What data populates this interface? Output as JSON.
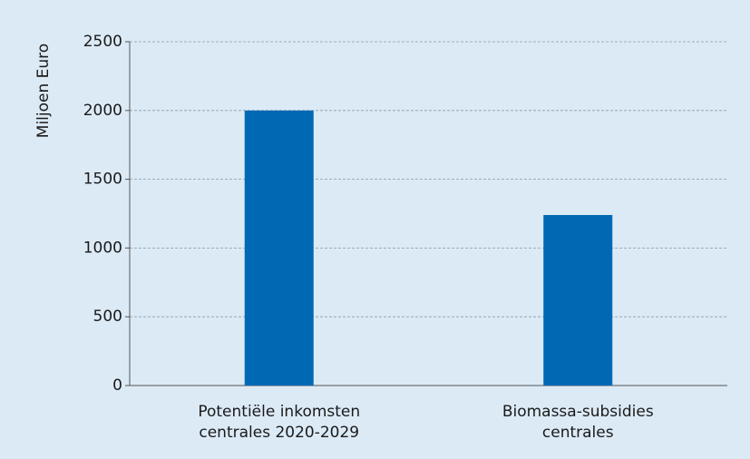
{
  "chart_data": {
    "type": "bar",
    "y_label": "Miljoen Euro",
    "categories": [
      "Potentiële inkomsten centrales 2020-2029",
      "Biomassa-subsidies centrales"
    ],
    "values": [
      2000,
      1240
    ],
    "color": "#0069b4",
    "ylim": [
      0,
      2500
    ],
    "yticks": [
      0,
      500,
      1000,
      1500,
      2000,
      2500
    ],
    "grid": true
  }
}
